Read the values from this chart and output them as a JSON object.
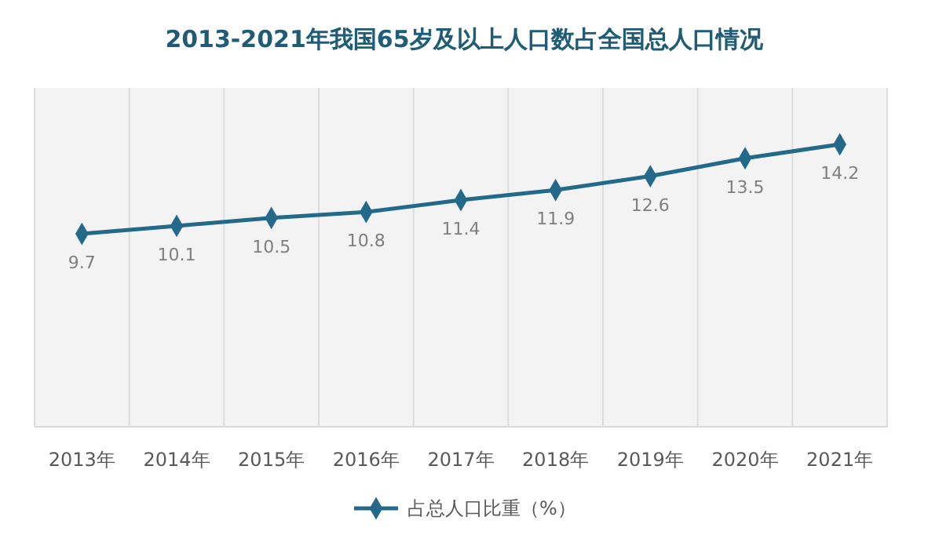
{
  "chart_data": {
    "type": "line",
    "title": "2013-2021年我国65岁及以上人口数占全国总人口情况",
    "categories": [
      "2013年",
      "2014年",
      "2015年",
      "2016年",
      "2017年",
      "2018年",
      "2019年",
      "2020年",
      "2021年"
    ],
    "series": [
      {
        "name": "占总人口比重（%）",
        "color": "#22698a",
        "values": [
          9.7,
          10.1,
          10.5,
          10.8,
          11.4,
          11.9,
          12.6,
          13.5,
          14.2
        ]
      }
    ],
    "data_labels": true,
    "marker": "diamond",
    "line_style": "solid",
    "grid": "x",
    "legend": "bottom"
  }
}
